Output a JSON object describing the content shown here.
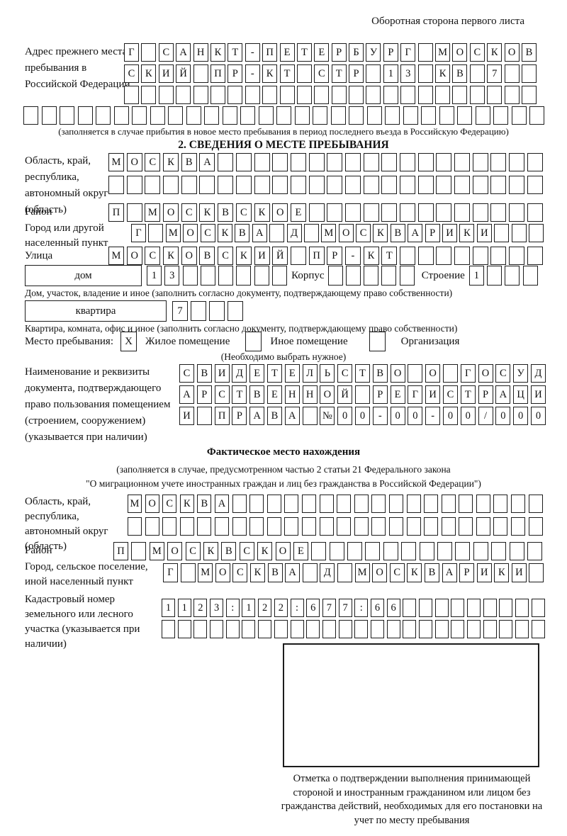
{
  "header": {
    "note": "Оборотная сторона первого листа"
  },
  "prev_address": {
    "label": "Адрес прежнего места пребывания в Российской Федерации",
    "rows": [
      [
        "Г",
        "",
        "С",
        "А",
        "Н",
        "К",
        "Т",
        "-",
        "П",
        "Е",
        "Т",
        "Е",
        "Р",
        "Б",
        "У",
        "Р",
        "Г",
        "",
        "М",
        "О",
        "С",
        "К",
        "О",
        "В"
      ],
      [
        "С",
        "К",
        "И",
        "Й",
        "",
        "П",
        "Р",
        "-",
        "К",
        "Т",
        "",
        "С",
        "Т",
        "Р",
        "",
        "1",
        "3",
        "",
        "К",
        "В",
        "",
        "7",
        "",
        ""
      ],
      [
        "",
        "",
        "",
        "",
        "",
        "",
        "",
        "",
        "",
        "",
        "",
        "",
        "",
        "",
        "",
        "",
        "",
        "",
        "",
        "",
        "",
        "",
        "",
        ""
      ]
    ],
    "full_row": [
      "",
      "",
      "",
      "",
      "",
      "",
      "",
      "",
      "",
      "",
      "",
      "",
      "",
      "",
      "",
      "",
      "",
      "",
      "",
      "",
      "",
      "",
      "",
      "",
      "",
      "",
      "",
      "",
      ""
    ],
    "caption": "(заполняется в случае прибытия в новое место пребывания в период последнего въезда в Российскую Федерацию)"
  },
  "section2": {
    "title": "2. СВЕДЕНИЯ О МЕСТЕ ПРЕБЫВАНИЯ",
    "region": {
      "label": "Область, край, республика, автономный округ (область)",
      "rows": [
        [
          "М",
          "О",
          "С",
          "К",
          "В",
          "А",
          "",
          "",
          "",
          "",
          "",
          "",
          "",
          "",
          "",
          "",
          "",
          "",
          "",
          "",
          "",
          "",
          "",
          ""
        ],
        [
          "",
          "",
          "",
          "",
          "",
          "",
          "",
          "",
          "",
          "",
          "",
          "",
          "",
          "",
          "",
          "",
          "",
          "",
          "",
          "",
          "",
          "",
          "",
          ""
        ]
      ]
    },
    "district": {
      "label": "Район",
      "row": [
        "П",
        "",
        "М",
        "О",
        "С",
        "К",
        "В",
        "С",
        "К",
        "О",
        "Е",
        "",
        "",
        "",
        "",
        "",
        "",
        "",
        "",
        "",
        "",
        "",
        "",
        ""
      ]
    },
    "city": {
      "label": "Город или другой населенный пункт",
      "row": [
        "Г",
        "",
        "М",
        "О",
        "С",
        "К",
        "В",
        "А",
        "",
        "Д",
        "",
        "М",
        "О",
        "С",
        "К",
        "В",
        "А",
        "Р",
        "И",
        "К",
        "И",
        "",
        "",
        ""
      ]
    },
    "street": {
      "label": "Улица",
      "row": [
        "М",
        "О",
        "С",
        "К",
        "О",
        "В",
        "С",
        "К",
        "И",
        "Й",
        "",
        "П",
        "Р",
        "-",
        "К",
        "Т",
        "",
        "",
        "",
        "",
        "",
        "",
        "",
        ""
      ]
    },
    "house": {
      "box_label": "дом",
      "number": [
        "1",
        "3",
        "",
        "",
        "",
        "",
        "",
        ""
      ],
      "korpus_label": "Корпус",
      "korpus": [
        "",
        "",
        "",
        "",
        ""
      ],
      "stroenie_label": "Строение",
      "stroenie": [
        "1",
        "",
        "",
        ""
      ]
    },
    "house_caption": "Дом, участок, владение и иное (заполнить согласно документу, подтверждающему право собственности)",
    "apartment": {
      "box_label": "квартира",
      "number": [
        "7",
        "",
        "",
        ""
      ]
    },
    "apartment_caption": "Квартира, комната, офис и иное (заполнить согласно документу, подтверждающему право собственности)",
    "stay_type": {
      "label": "Место пребывания:",
      "options": [
        {
          "mark": "X",
          "label": "Жилое помещение"
        },
        {
          "mark": "",
          "label": "Иное помещение"
        },
        {
          "mark": "",
          "label": "Организация"
        }
      ],
      "hint": "(Необходимо выбрать нужное)"
    },
    "document": {
      "label": "Наименование и реквизиты документа, подтверждающего право пользования помещением (строением, сооружением) (указывается при наличии)",
      "rows": [
        [
          "С",
          "В",
          "И",
          "Д",
          "Е",
          "Т",
          "Е",
          "Л",
          "Ь",
          "С",
          "Т",
          "В",
          "О",
          "",
          "О",
          "",
          "Г",
          "О",
          "С",
          "У",
          "Д"
        ],
        [
          "А",
          "Р",
          "С",
          "Т",
          "В",
          "Е",
          "Н",
          "Н",
          "О",
          "Й",
          "",
          "Р",
          "Е",
          "Г",
          "И",
          "С",
          "Т",
          "Р",
          "А",
          "Ц",
          "И"
        ],
        [
          "И",
          "",
          "П",
          "Р",
          "А",
          "В",
          "А",
          "",
          "№",
          "0",
          "0",
          "-",
          "0",
          "0",
          "-",
          "0",
          "0",
          "/",
          "0",
          "0",
          "0"
        ]
      ]
    }
  },
  "actual_location": {
    "title": "Фактическое место нахождения",
    "caption_line1": "(заполняется в случае, предусмотренном частью 2 статьи 21 Федерального закона",
    "caption_line2": "\"О миграционном учете иностранных граждан и лиц без гражданства в Российской Федерации\")",
    "region": {
      "label": "Область, край, республика, автономный округ (область)",
      "rows": [
        [
          "М",
          "О",
          "С",
          "К",
          "В",
          "А",
          "",
          "",
          "",
          "",
          "",
          "",
          "",
          "",
          "",
          "",
          "",
          "",
          "",
          "",
          "",
          "",
          "",
          ""
        ],
        [
          "",
          "",
          "",
          "",
          "",
          "",
          "",
          "",
          "",
          "",
          "",
          "",
          "",
          "",
          "",
          "",
          "",
          "",
          "",
          "",
          "",
          "",
          "",
          ""
        ]
      ]
    },
    "district": {
      "label": "Район",
      "row": [
        "П",
        "",
        "М",
        "О",
        "С",
        "К",
        "В",
        "С",
        "К",
        "О",
        "Е",
        "",
        "",
        "",
        "",
        "",
        "",
        "",
        "",
        "",
        "",
        "",
        "",
        ""
      ]
    },
    "city": {
      "label": "Город, сельское поселение, иной населенный пункт",
      "row": [
        "Г",
        "",
        "М",
        "О",
        "С",
        "К",
        "В",
        "А",
        "",
        "Д",
        "",
        "М",
        "О",
        "С",
        "К",
        "В",
        "А",
        "Р",
        "И",
        "К",
        "И",
        ""
      ]
    },
    "cadastral": {
      "label": "Кадастровый номер земельного или лесного участка (указывается при наличии)",
      "rows": [
        [
          "1",
          "1",
          "2",
          "3",
          ":",
          "1",
          "2",
          "2",
          ":",
          "6",
          "7",
          "7",
          ":",
          "6",
          "6",
          "",
          "",
          "",
          "",
          "",
          "",
          "",
          "",
          ""
        ],
        [
          "",
          "",
          "",
          "",
          "",
          "",
          "",
          "",
          "",
          "",
          "",
          "",
          "",
          "",
          "",
          "",
          "",
          "",
          "",
          "",
          "",
          "",
          "",
          ""
        ]
      ]
    },
    "mark_caption": "Отметка о подтверждении выполнения принимающей стороной и иностранным гражданином или лицом без гражданства действий, необходимых для его постановки на учет по месту пребывания"
  }
}
